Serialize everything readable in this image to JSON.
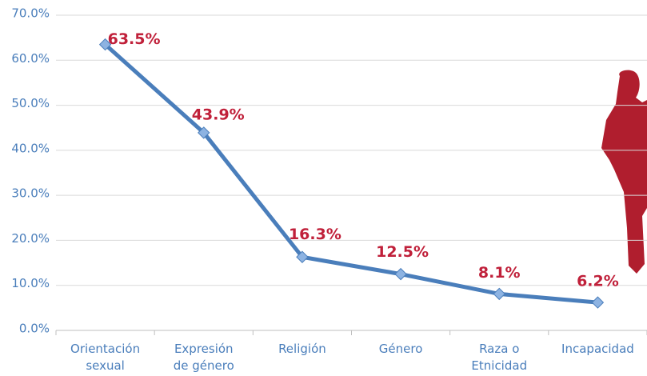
{
  "chart_data": {
    "type": "line",
    "categories": [
      "Orientación\nsexual",
      "Expresión\nde género",
      "Religión",
      "Género",
      "Raza o\nEtnicidad",
      "Incapacidad"
    ],
    "series": [
      {
        "color": "#4a7ebb",
        "values": [
          63.5,
          43.9,
          16.3,
          12.5,
          8.1,
          6.2
        ],
        "value_labels": [
          "63.5%",
          "43.9%",
          "16.3%",
          "12.5%",
          "8.1%",
          "6.2%"
        ]
      }
    ],
    "ylim": [
      0,
      70
    ],
    "yticks": [
      {
        "value": 0,
        "label": "0.0%"
      },
      {
        "value": 10,
        "label": "10.0%"
      },
      {
        "value": 20,
        "label": "20.0%"
      },
      {
        "value": 30,
        "label": "30.0%"
      },
      {
        "value": 40,
        "label": "40.0%"
      },
      {
        "value": 50,
        "label": "50.0%"
      },
      {
        "value": 60,
        "label": "60.0%"
      },
      {
        "value": 70,
        "label": "70.0%"
      }
    ],
    "grid": true
  }
}
